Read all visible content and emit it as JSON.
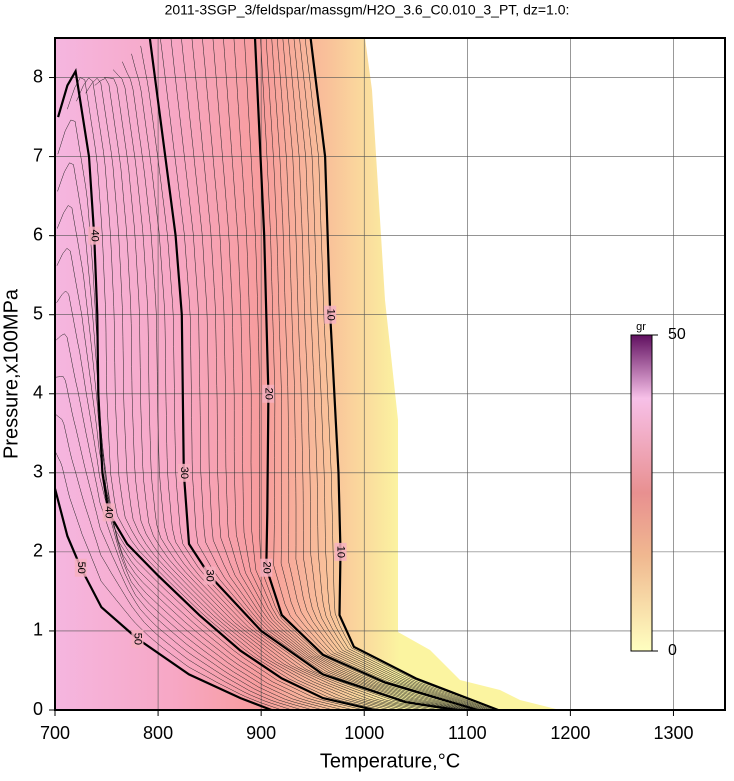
{
  "chart_data": {
    "type": "contour",
    "title": "2011-3SGP_3/feldspar/massgm/H2O_3.6_C0.010_3_PT, dz=1.0:",
    "x_label": "Temperature,°C",
    "y_label": "Pressure,x100MPa",
    "xlim": [
      700,
      1350
    ],
    "ylim": [
      0,
      8.5
    ],
    "xticks": [
      700,
      800,
      900,
      1000,
      1100,
      1200,
      1300
    ],
    "yticks": [
      0,
      1,
      2,
      3,
      4,
      5,
      6,
      7,
      8
    ],
    "grid": true,
    "contours": [
      {
        "level": 10,
        "x": [
          948,
          962,
          967,
          975,
          977,
          976,
          990,
          1050,
          1130
        ],
        "y": [
          8.5,
          7,
          5,
          3,
          2,
          1.2,
          0.8,
          0.4,
          0
        ]
      },
      {
        "level": 20,
        "x": [
          894,
          903,
          907,
          906,
          905,
          920,
          960,
          1020,
          1110
        ],
        "y": [
          8.5,
          6,
          4,
          2.5,
          1.8,
          1.2,
          0.7,
          0.35,
          0
        ]
      },
      {
        "level": 30,
        "x": [
          792,
          817,
          823,
          825,
          830,
          850,
          900,
          960,
          1040,
          1090
        ],
        "y": [
          8.5,
          6,
          5,
          3,
          2.1,
          1.7,
          1.0,
          0.45,
          0.1,
          0
        ]
      },
      {
        "level": 40,
        "x": [
          703,
          712,
          720,
          727,
          733,
          738,
          741,
          742,
          746,
          752,
          770,
          800,
          840,
          880,
          920,
          960,
          1010
        ],
        "y": [
          7.5,
          7.9,
          8.08,
          7.5,
          7,
          6,
          5,
          4,
          3,
          2.5,
          2.1,
          1.7,
          1.2,
          0.75,
          0.4,
          0.15,
          0
        ]
      },
      {
        "level": 50,
        "x": [
          700,
          712,
          725,
          745,
          780,
          830,
          880,
          910
        ],
        "y": [
          2.8,
          2.2,
          1.8,
          1.3,
          0.9,
          0.45,
          0.15,
          0
        ]
      }
    ],
    "colorbar": {
      "label": "gr",
      "lim": [
        0,
        50
      ],
      "ticks": [
        0,
        50
      ]
    }
  }
}
